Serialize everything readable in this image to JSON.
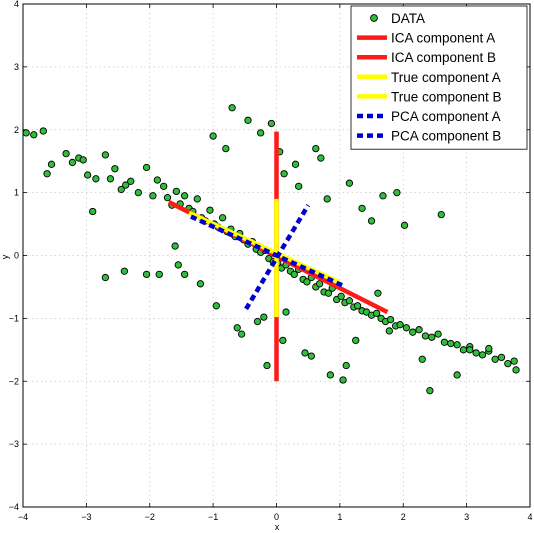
{
  "chart_data": {
    "type": "scatter",
    "xlabel": "x",
    "ylabel": "y",
    "xlim": [
      -4,
      4
    ],
    "ylim": [
      -4,
      4
    ],
    "xticks": [
      -4,
      -3,
      -2,
      -1,
      0,
      1,
      2,
      3,
      4
    ],
    "yticks": [
      -4,
      -3,
      -2,
      -1,
      0,
      1,
      2,
      3,
      4
    ],
    "grid": true,
    "legend_position": "top-right",
    "colors": {
      "data_fill": "#2fbf3a",
      "ica": "#ff1a1a",
      "true": "#ffff00",
      "pca": "#0000d0"
    },
    "legend": [
      {
        "label": "DATA",
        "style": "marker",
        "color": "#2fbf3a"
      },
      {
        "label": "ICA component A",
        "style": "solid",
        "color": "#ff1a1a"
      },
      {
        "label": "ICA component B",
        "style": "solid",
        "color": "#ff1a1a"
      },
      {
        "label": "True component A",
        "style": "solid",
        "color": "#ffff00"
      },
      {
        "label": "True component B",
        "style": "solid",
        "color": "#ffff00"
      },
      {
        "label": "PCA component A",
        "style": "dashed",
        "color": "#0000d0"
      },
      {
        "label": "PCA component B",
        "style": "dashed",
        "color": "#0000d0"
      }
    ],
    "series": [
      {
        "name": "DATA",
        "x": [
          -3.95,
          -3.83,
          -3.68,
          -3.62,
          -3.55,
          -3.32,
          -3.22,
          -3.12,
          -3.05,
          -2.98,
          -2.85,
          -2.7,
          -2.62,
          -2.55,
          -2.45,
          -2.38,
          -2.3,
          -2.18,
          -2.05,
          -1.95,
          -1.88,
          -1.78,
          -1.72,
          -1.65,
          -1.58,
          -1.52,
          -1.45,
          -1.38,
          -1.32,
          -1.25,
          -1.18,
          -1.12,
          -1.05,
          -0.98,
          -0.92,
          -0.85,
          -0.78,
          -0.72,
          -0.65,
          -0.58,
          -0.52,
          -0.45,
          -0.38,
          -0.32,
          -0.25,
          -0.18,
          -0.12,
          -0.05,
          0.02,
          0.08,
          0.15,
          0.22,
          0.28,
          0.35,
          0.42,
          0.48,
          0.55,
          0.62,
          0.68,
          0.75,
          0.82,
          0.88,
          0.95,
          1.02,
          1.08,
          1.15,
          1.22,
          1.28,
          1.35,
          1.42,
          1.5,
          1.58,
          1.65,
          1.72,
          1.8,
          1.88,
          1.95,
          2.05,
          2.15,
          2.25,
          2.35,
          2.45,
          2.55,
          2.65,
          2.75,
          2.85,
          2.95,
          3.05,
          3.15,
          3.25,
          3.35,
          3.45,
          3.55,
          3.65,
          3.75,
          3.78,
          -2.4,
          -2.05,
          -1.55,
          -1.45,
          -1.2,
          -0.95,
          -0.62,
          -0.55,
          -0.3,
          -0.2,
          -0.15,
          0.1,
          0.15,
          0.45,
          0.55,
          0.85,
          1.05,
          1.1,
          1.25,
          1.6,
          1.78,
          2.3,
          2.42,
          2.85,
          3.05,
          3.35,
          -0.08,
          0.05,
          0.12,
          -0.7,
          -0.45,
          0.3,
          0.62,
          1.35,
          1.68,
          2.02,
          2.6,
          -1.0,
          -0.8,
          -0.25,
          0.35,
          0.8,
          1.5,
          -1.85,
          -1.6,
          -2.7,
          -2.9,
          0.7,
          1.15,
          1.9
        ],
        "y": [
          1.95,
          1.92,
          1.98,
          1.3,
          1.45,
          1.62,
          1.48,
          1.55,
          1.52,
          1.28,
          1.22,
          1.6,
          1.22,
          1.38,
          1.05,
          1.12,
          1.18,
          1.0,
          1.4,
          0.95,
          1.2,
          1.1,
          0.92,
          0.8,
          1.02,
          0.82,
          0.95,
          0.75,
          0.7,
          0.9,
          0.6,
          0.55,
          0.72,
          0.5,
          0.45,
          0.6,
          0.38,
          0.42,
          0.3,
          0.35,
          0.25,
          0.18,
          0.22,
          0.1,
          0.05,
          0.08,
          -0.05,
          -0.1,
          -0.12,
          -0.2,
          -0.15,
          -0.25,
          -0.3,
          -0.22,
          -0.38,
          -0.42,
          -0.35,
          -0.5,
          -0.45,
          -0.58,
          -0.6,
          -0.52,
          -0.7,
          -0.65,
          -0.75,
          -0.72,
          -0.82,
          -0.8,
          -0.88,
          -0.9,
          -0.95,
          -0.92,
          -1.0,
          -1.05,
          -1.02,
          -1.12,
          -1.1,
          -1.15,
          -1.22,
          -1.18,
          -1.28,
          -1.3,
          -1.25,
          -1.38,
          -1.4,
          -1.42,
          -1.5,
          -1.45,
          -1.55,
          -1.58,
          -1.52,
          -1.65,
          -1.62,
          -1.72,
          -1.68,
          -1.82,
          -0.25,
          -0.3,
          -0.15,
          -0.3,
          -0.45,
          -0.8,
          -1.15,
          -1.25,
          -1.05,
          -0.98,
          -1.75,
          -1.35,
          -0.9,
          -1.55,
          -1.6,
          -1.9,
          -1.98,
          -1.75,
          -1.35,
          -0.6,
          -1.2,
          -1.65,
          -2.15,
          -1.9,
          -1.5,
          -1.48,
          2.1,
          1.65,
          1.3,
          2.35,
          2.15,
          1.45,
          1.7,
          0.75,
          0.95,
          0.48,
          0.65,
          1.9,
          1.7,
          1.95,
          1.1,
          0.9,
          0.55,
          -0.3,
          0.15,
          -0.35,
          0.7,
          1.55,
          1.15,
          1.0
        ]
      }
    ],
    "lines": [
      {
        "name": "ICA component A",
        "x": [
          -1.7,
          1.75
        ],
        "y": [
          0.85,
          -0.9
        ],
        "color": "#ff1a1a",
        "dash": false
      },
      {
        "name": "ICA component B",
        "x": [
          0.0,
          0.0
        ],
        "y": [
          -2.0,
          1.97
        ],
        "color": "#ff1a1a",
        "dash": false
      },
      {
        "name": "True component A",
        "x": [
          -1.38,
          0.98
        ],
        "y": [
          0.68,
          -0.42
        ],
        "color": "#ffff00",
        "dash": false
      },
      {
        "name": "True component B",
        "x": [
          0.0,
          0.0
        ],
        "y": [
          -0.98,
          0.9
        ],
        "color": "#ffff00",
        "dash": false
      },
      {
        "name": "PCA component A",
        "x": [
          -1.35,
          1.05
        ],
        "y": [
          0.62,
          -0.48
        ],
        "color": "#0000d0",
        "dash": true
      },
      {
        "name": "PCA component B",
        "x": [
          -0.48,
          0.5
        ],
        "y": [
          -0.85,
          0.8
        ],
        "color": "#0000d0",
        "dash": true
      }
    ]
  }
}
